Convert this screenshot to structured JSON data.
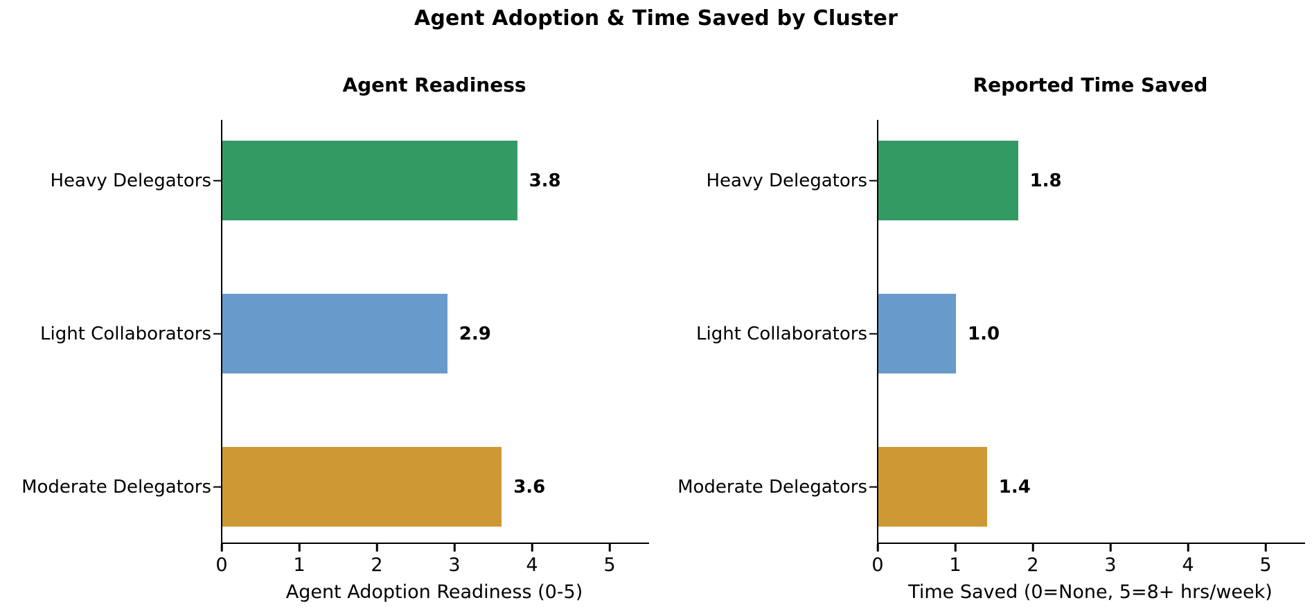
{
  "figure": {
    "title": "Agent Adoption & Time Saved by Cluster"
  },
  "chart_data": [
    {
      "type": "bar",
      "orientation": "horizontal",
      "title": "Agent Readiness",
      "categories": [
        "Heavy Delegators",
        "Light Collaborators",
        "Moderate Delegators"
      ],
      "values": [
        3.8,
        2.9,
        3.6
      ],
      "value_labels": [
        "3.8",
        "2.9",
        "3.6"
      ],
      "bar_colors": [
        "#349a64",
        "#689aca",
        "#ce9835"
      ],
      "xlabel": "Agent Adoption Readiness (0-5)",
      "xticks": [
        0,
        1,
        2,
        3,
        4,
        5
      ],
      "xlim": [
        0,
        5.5
      ],
      "grid": false,
      "legend": null
    },
    {
      "type": "bar",
      "orientation": "horizontal",
      "title": "Reported Time Saved",
      "categories": [
        "Heavy Delegators",
        "Light Collaborators",
        "Moderate Delegators"
      ],
      "values": [
        1.8,
        1.0,
        1.4
      ],
      "value_labels": [
        "1.8",
        "1.0",
        "1.4"
      ],
      "bar_colors": [
        "#349a64",
        "#689aca",
        "#ce9835"
      ],
      "xlabel": "Time Saved (0=None, 5=8+ hrs/week)",
      "xticks": [
        0,
        1,
        2,
        3,
        4,
        5
      ],
      "xlim": [
        0,
        5.5
      ],
      "grid": false,
      "legend": null
    }
  ],
  "style": {
    "background": "#ffffff",
    "spine_color": "#000000",
    "text_color": "#000000"
  }
}
